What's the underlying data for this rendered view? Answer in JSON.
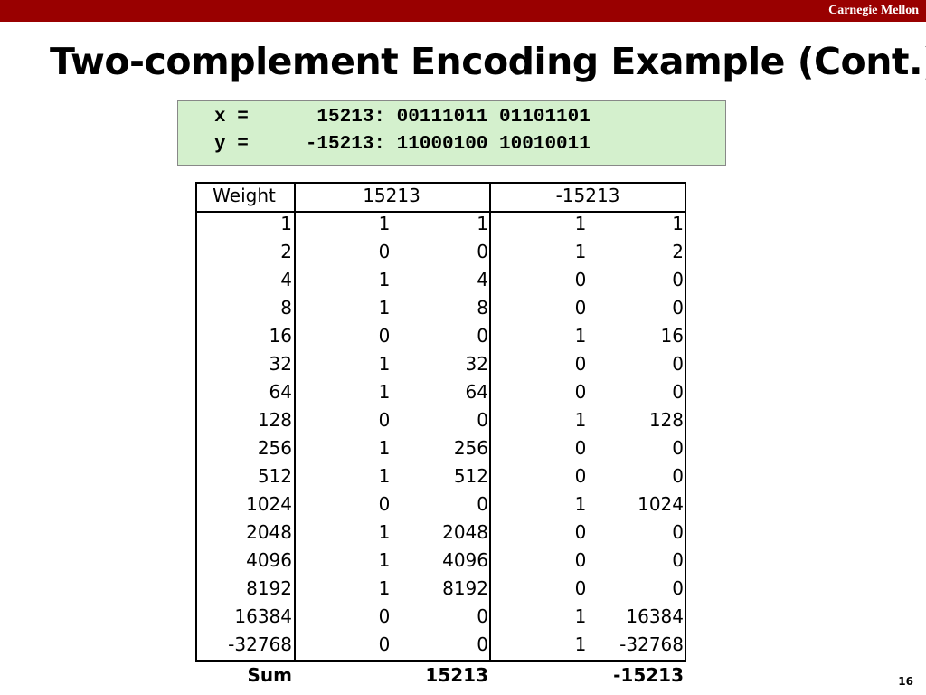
{
  "header": {
    "brand": "Carnegie Mellon"
  },
  "title": "Two-complement Encoding Example (Cont.)",
  "code": [
    "x =      15213: 00111011 01101101",
    "y =     -15213: 11000100 10010011"
  ],
  "table": {
    "headers": [
      "Weight",
      "15213",
      "-15213"
    ],
    "rows": [
      [
        "1",
        "1",
        "1",
        "1",
        "1"
      ],
      [
        "2",
        "0",
        "0",
        "1",
        "2"
      ],
      [
        "4",
        "1",
        "4",
        "0",
        "0"
      ],
      [
        "8",
        "1",
        "8",
        "0",
        "0"
      ],
      [
        "16",
        "0",
        "0",
        "1",
        "16"
      ],
      [
        "32",
        "1",
        "32",
        "0",
        "0"
      ],
      [
        "64",
        "1",
        "64",
        "0",
        "0"
      ],
      [
        "128",
        "0",
        "0",
        "1",
        "128"
      ],
      [
        "256",
        "1",
        "256",
        "0",
        "0"
      ],
      [
        "512",
        "1",
        "512",
        "0",
        "0"
      ],
      [
        "1024",
        "0",
        "0",
        "1",
        "1024"
      ],
      [
        "2048",
        "1",
        "2048",
        "0",
        "0"
      ],
      [
        "4096",
        "1",
        "4096",
        "0",
        "0"
      ],
      [
        "8192",
        "1",
        "8192",
        "0",
        "0"
      ],
      [
        "16384",
        "0",
        "0",
        "1",
        "16384"
      ],
      [
        "-32768",
        "0",
        "0",
        "1",
        "-32768"
      ]
    ],
    "sum": {
      "label": "Sum",
      "values": [
        "15213",
        "-15213"
      ]
    }
  },
  "page_number": "16"
}
